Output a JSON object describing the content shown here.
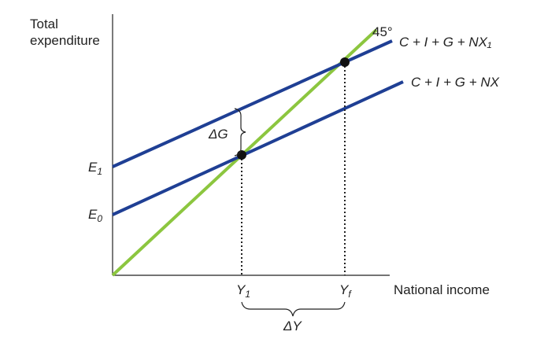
{
  "axes": {
    "y_label_line1": "Total",
    "y_label_line2": "expenditure",
    "x_label": "National income"
  },
  "lines": {
    "degree45": "45°",
    "ae_new": "C + I + G + NX₁",
    "ae_old": "C + I + G + NX"
  },
  "intercepts": {
    "e1_main": "E",
    "e1_sub": "1",
    "e0_main": "E",
    "e0_sub": "0"
  },
  "points": {
    "y1_main": "Y",
    "y1_sub": "1",
    "yf_main": "Y",
    "yf_sub": "f"
  },
  "annotations": {
    "delta_g": "ΔG",
    "delta_y": "ΔY"
  },
  "colors": {
    "ae_line": "#1f3f94",
    "degree45_line": "#8cc63f",
    "axis": "#222222",
    "point": "#111111"
  }
}
